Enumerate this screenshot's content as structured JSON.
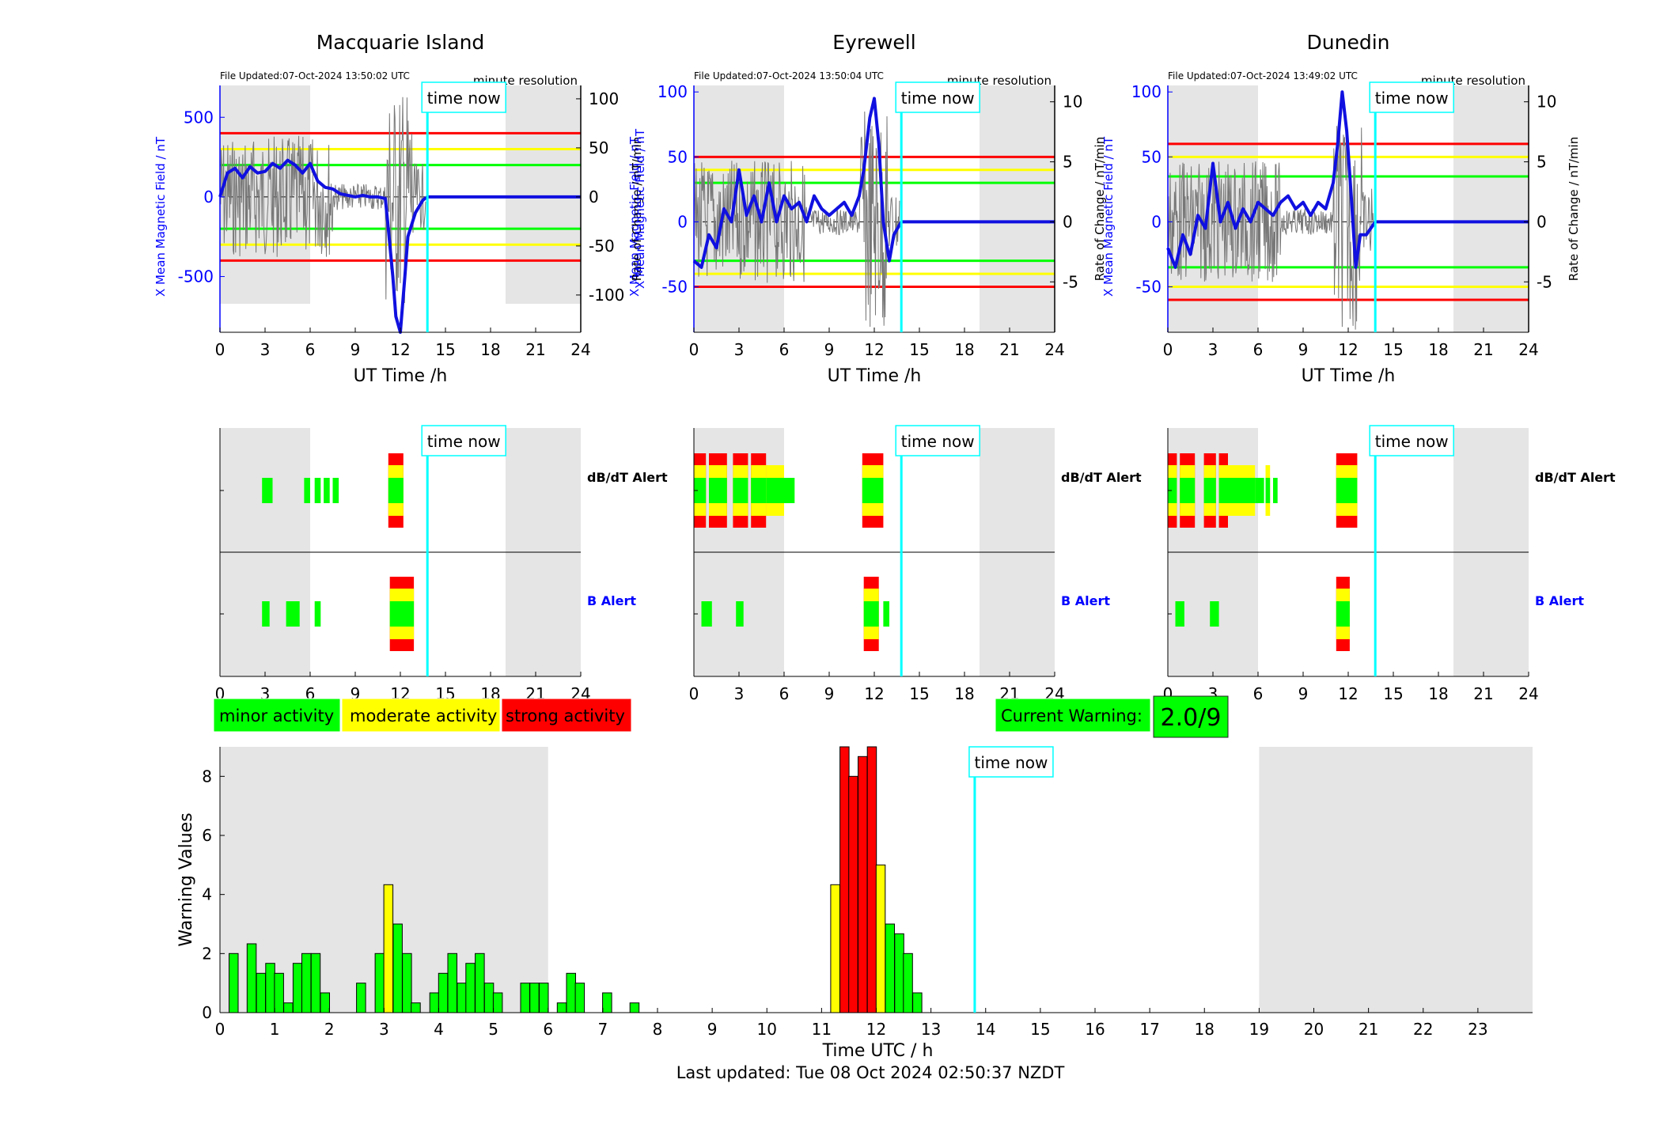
{
  "colors": {
    "grey": "#e5e5e5",
    "red": "#ff0000",
    "yellow": "#ffff00",
    "green": "#00ff00",
    "blue": "#0000ff",
    "cyan": "#00ffff",
    "field": "#1010e0",
    "trace": "#777777"
  },
  "labels": {
    "time_now": "time now",
    "minute_res": "minute resolution",
    "ut_xlabel": "UT Time /h",
    "y_left": "X Mean Magnetic Field / nT",
    "y_right": "Rate of Change / nT/min",
    "dbdt_alert": "dB/dT Alert",
    "b_alert": "B Alert",
    "legend_minor": "minor activity",
    "legend_moderate": "moderate activity",
    "legend_strong": "strong activity",
    "current_warning_label": "Current Warning:",
    "current_warning_value": "2.0/9",
    "last_updated": "Last updated: Tue 08 Oct 2024 02:50:37 NZDT"
  },
  "stations": [
    {
      "name": "Macquarie Island",
      "file_updated": "File Updated:07-Oct-2024 13:50:02 UTC",
      "y_ticks_left": [
        "500",
        "0",
        "-500"
      ],
      "y_ticks_right": [
        "100",
        "50",
        "0",
        "-50",
        "-100"
      ],
      "left_label_overlap": "",
      "right_label_overlap": "Rate of Change / nT/min",
      "show_right_label": false
    },
    {
      "name": "Eyrewell",
      "file_updated": "File Updated:07-Oct-2024 13:50:04 UTC",
      "y_ticks_left": [
        "100",
        "50",
        "0",
        "-50"
      ],
      "y_ticks_right": [
        "10",
        "5",
        "0",
        "-5"
      ],
      "show_right_label": true
    },
    {
      "name": "Dunedin",
      "file_updated": "File Updated:07-Oct-2024 13:49:02 UTC",
      "y_ticks_left": [
        "100",
        "50",
        "0",
        "-50"
      ],
      "y_ticks_right": [
        "10",
        "5",
        "0",
        "-5"
      ],
      "show_right_label": true
    }
  ],
  "chart_data": [
    {
      "type": "line",
      "title": "Macquarie Island",
      "xlabel": "UT Time /h",
      "ylabel": "X Mean Magnetic Field / nT",
      "xlim": [
        0,
        24
      ],
      "x_ticks": [
        0,
        3,
        6,
        9,
        12,
        15,
        18,
        21,
        24
      ],
      "ylim": [
        -850,
        700
      ],
      "thresholds_nT": {
        "red": 400,
        "yellow": 300,
        "green": 200
      },
      "time_now_h": 13.8,
      "series": [
        {
          "name": "X Mean Magnetic Field",
          "x": [
            0,
            0.5,
            1,
            1.5,
            2,
            2.5,
            3,
            3.5,
            4,
            4.5,
            5,
            5.5,
            6,
            6.5,
            7,
            7.5,
            8,
            8.5,
            9,
            9.5,
            10,
            10.5,
            11,
            11.2,
            11.5,
            11.7,
            12,
            12.3,
            12.5,
            13,
            13.5,
            13.8,
            24
          ],
          "y": [
            0,
            150,
            180,
            120,
            190,
            150,
            160,
            210,
            180,
            230,
            200,
            150,
            210,
            100,
            60,
            50,
            20,
            10,
            0,
            10,
            0,
            0,
            -10,
            -200,
            -500,
            -750,
            -850,
            -500,
            -250,
            -100,
            -20,
            0,
            0
          ]
        }
      ]
    },
    {
      "type": "line",
      "title": "Eyrewell",
      "xlabel": "UT Time /h",
      "ylabel": "X Mean Magnetic Field / nT",
      "xlim": [
        0,
        24
      ],
      "x_ticks": [
        0,
        3,
        6,
        9,
        12,
        15,
        18,
        21,
        24
      ],
      "ylim": [
        -85,
        105
      ],
      "thresholds_nT": {
        "red": 50,
        "yellow": 40,
        "green": 30
      },
      "time_now_h": 13.8,
      "series": [
        {
          "name": "X Mean Magnetic Field",
          "x": [
            0,
            0.5,
            1,
            1.5,
            2,
            2.5,
            3,
            3.5,
            4,
            4.5,
            5,
            5.5,
            6,
            6.5,
            7,
            7.5,
            8,
            8.5,
            9,
            9.5,
            10,
            10.5,
            11,
            11.3,
            11.7,
            12,
            12.3,
            12.6,
            13,
            13.3,
            13.8,
            24
          ],
          "y": [
            -30,
            -35,
            -10,
            -20,
            10,
            0,
            40,
            5,
            20,
            0,
            30,
            0,
            20,
            10,
            15,
            0,
            20,
            10,
            5,
            10,
            15,
            5,
            20,
            40,
            80,
            95,
            60,
            0,
            -30,
            -10,
            0,
            0
          ]
        }
      ]
    },
    {
      "type": "line",
      "title": "Dunedin",
      "xlabel": "UT Time /h",
      "ylabel": "X Mean Magnetic Field / nT",
      "xlim": [
        0,
        24
      ],
      "x_ticks": [
        0,
        3,
        6,
        9,
        12,
        15,
        18,
        21,
        24
      ],
      "ylim": [
        -85,
        105
      ],
      "thresholds_nT": {
        "red": 60,
        "yellow": 50,
        "green": 35
      },
      "time_now_h": 13.8,
      "series": [
        {
          "name": "X Mean Magnetic Field",
          "x": [
            0,
            0.5,
            1,
            1.5,
            2,
            2.5,
            3,
            3.5,
            4,
            4.5,
            5,
            5.5,
            6,
            6.5,
            7,
            7.5,
            8,
            8.5,
            9,
            9.5,
            10,
            10.5,
            11,
            11.3,
            11.6,
            11.9,
            12.2,
            12.5,
            12.8,
            13.2,
            13.8,
            24
          ],
          "y": [
            -20,
            -35,
            -10,
            -25,
            5,
            -5,
            45,
            0,
            15,
            -5,
            10,
            0,
            15,
            10,
            5,
            15,
            20,
            10,
            15,
            5,
            15,
            10,
            30,
            60,
            100,
            70,
            20,
            -35,
            -10,
            -10,
            0,
            0
          ]
        }
      ]
    },
    {
      "type": "bar",
      "title": "",
      "xlabel": "Time UTC / h",
      "ylabel": "Warning Values",
      "xlim": [
        0,
        24
      ],
      "ylim": [
        0,
        9
      ],
      "time_now_h": 13.8,
      "bars": [
        {
          "x": 0.25,
          "v": 2,
          "c": "green"
        },
        {
          "x": 0.58,
          "v": 2.33,
          "c": "green"
        },
        {
          "x": 0.75,
          "v": 1.33,
          "c": "green"
        },
        {
          "x": 0.92,
          "v": 1.67,
          "c": "green"
        },
        {
          "x": 1.08,
          "v": 1.33,
          "c": "green"
        },
        {
          "x": 1.25,
          "v": 0.33,
          "c": "green"
        },
        {
          "x": 1.42,
          "v": 1.67,
          "c": "green"
        },
        {
          "x": 1.58,
          "v": 2,
          "c": "green"
        },
        {
          "x": 1.75,
          "v": 2,
          "c": "green"
        },
        {
          "x": 1.92,
          "v": 0.67,
          "c": "green"
        },
        {
          "x": 2.58,
          "v": 1,
          "c": "green"
        },
        {
          "x": 2.92,
          "v": 2,
          "c": "green"
        },
        {
          "x": 3.08,
          "v": 4.33,
          "c": "yellow"
        },
        {
          "x": 3.25,
          "v": 3,
          "c": "green"
        },
        {
          "x": 3.42,
          "v": 2,
          "c": "green"
        },
        {
          "x": 3.58,
          "v": 0.33,
          "c": "green"
        },
        {
          "x": 3.92,
          "v": 0.67,
          "c": "green"
        },
        {
          "x": 4.08,
          "v": 1.33,
          "c": "green"
        },
        {
          "x": 4.25,
          "v": 2,
          "c": "green"
        },
        {
          "x": 4.42,
          "v": 1,
          "c": "green"
        },
        {
          "x": 4.58,
          "v": 1.67,
          "c": "green"
        },
        {
          "x": 4.75,
          "v": 2,
          "c": "green"
        },
        {
          "x": 4.92,
          "v": 1,
          "c": "green"
        },
        {
          "x": 5.08,
          "v": 0.67,
          "c": "green"
        },
        {
          "x": 5.58,
          "v": 1,
          "c": "green"
        },
        {
          "x": 5.75,
          "v": 1,
          "c": "green"
        },
        {
          "x": 5.92,
          "v": 1,
          "c": "green"
        },
        {
          "x": 6.25,
          "v": 0.33,
          "c": "green"
        },
        {
          "x": 6.42,
          "v": 1.33,
          "c": "green"
        },
        {
          "x": 6.58,
          "v": 1,
          "c": "green"
        },
        {
          "x": 7.08,
          "v": 0.67,
          "c": "green"
        },
        {
          "x": 7.58,
          "v": 0.33,
          "c": "green"
        },
        {
          "x": 11.25,
          "v": 4.33,
          "c": "yellow"
        },
        {
          "x": 11.42,
          "v": 9,
          "c": "red"
        },
        {
          "x": 11.58,
          "v": 8,
          "c": "red"
        },
        {
          "x": 11.75,
          "v": 8.67,
          "c": "red"
        },
        {
          "x": 11.92,
          "v": 9,
          "c": "red"
        },
        {
          "x": 12.08,
          "v": 5,
          "c": "yellow"
        },
        {
          "x": 12.25,
          "v": 3,
          "c": "green"
        },
        {
          "x": 12.42,
          "v": 2.67,
          "c": "green"
        },
        {
          "x": 12.58,
          "v": 2,
          "c": "green"
        },
        {
          "x": 12.75,
          "v": 0.67,
          "c": "green"
        }
      ]
    }
  ],
  "alerts": [
    {
      "dbdt": [
        {
          "s": 2.8,
          "e": 3.5,
          "lvl": 1
        },
        {
          "s": 5.6,
          "e": 6.0,
          "lvl": 1
        },
        {
          "s": 6.3,
          "e": 6.7,
          "lvl": 1
        },
        {
          "s": 6.9,
          "e": 7.3,
          "lvl": 1
        },
        {
          "s": 7.5,
          "e": 7.9,
          "lvl": 1
        },
        {
          "s": 11.2,
          "e": 12.2,
          "lvl": 3
        }
      ],
      "b": [
        {
          "s": 2.8,
          "e": 3.3,
          "lvl": 1
        },
        {
          "s": 4.4,
          "e": 5.3,
          "lvl": 1
        },
        {
          "s": 6.3,
          "e": 6.7,
          "lvl": 1
        },
        {
          "s": 11.3,
          "e": 12.9,
          "lvl": 3
        }
      ]
    },
    {
      "dbdt": [
        {
          "s": 0,
          "e": 0.8,
          "lvl": 3
        },
        {
          "s": 1.0,
          "e": 2.2,
          "lvl": 3
        },
        {
          "s": 2.6,
          "e": 3.6,
          "lvl": 3
        },
        {
          "s": 3.8,
          "e": 4.8,
          "lvl": 3
        },
        {
          "s": 4.8,
          "e": 6.0,
          "lvl": 2
        },
        {
          "s": 6.0,
          "e": 6.7,
          "lvl": 1
        },
        {
          "s": 11.2,
          "e": 12.6,
          "lvl": 3
        }
      ],
      "b": [
        {
          "s": 0.5,
          "e": 1.2,
          "lvl": 1
        },
        {
          "s": 2.8,
          "e": 3.3,
          "lvl": 1
        },
        {
          "s": 11.3,
          "e": 12.3,
          "lvl": 3
        },
        {
          "s": 12.6,
          "e": 13.0,
          "lvl": 1
        }
      ]
    },
    {
      "dbdt": [
        {
          "s": 0,
          "e": 0.6,
          "lvl": 3
        },
        {
          "s": 0.8,
          "e": 1.8,
          "lvl": 3
        },
        {
          "s": 2.4,
          "e": 3.2,
          "lvl": 3
        },
        {
          "s": 3.4,
          "e": 4.0,
          "lvl": 3
        },
        {
          "s": 4.0,
          "e": 5.8,
          "lvl": 2
        },
        {
          "s": 5.8,
          "e": 6.4,
          "lvl": 1
        },
        {
          "s": 6.5,
          "e": 6.8,
          "lvl": 2
        },
        {
          "s": 7.0,
          "e": 7.3,
          "lvl": 1
        },
        {
          "s": 11.2,
          "e": 12.6,
          "lvl": 3
        }
      ],
      "b": [
        {
          "s": 0.5,
          "e": 1.1,
          "lvl": 1
        },
        {
          "s": 2.8,
          "e": 3.4,
          "lvl": 1
        },
        {
          "s": 11.2,
          "e": 12.1,
          "lvl": 3
        }
      ]
    }
  ]
}
